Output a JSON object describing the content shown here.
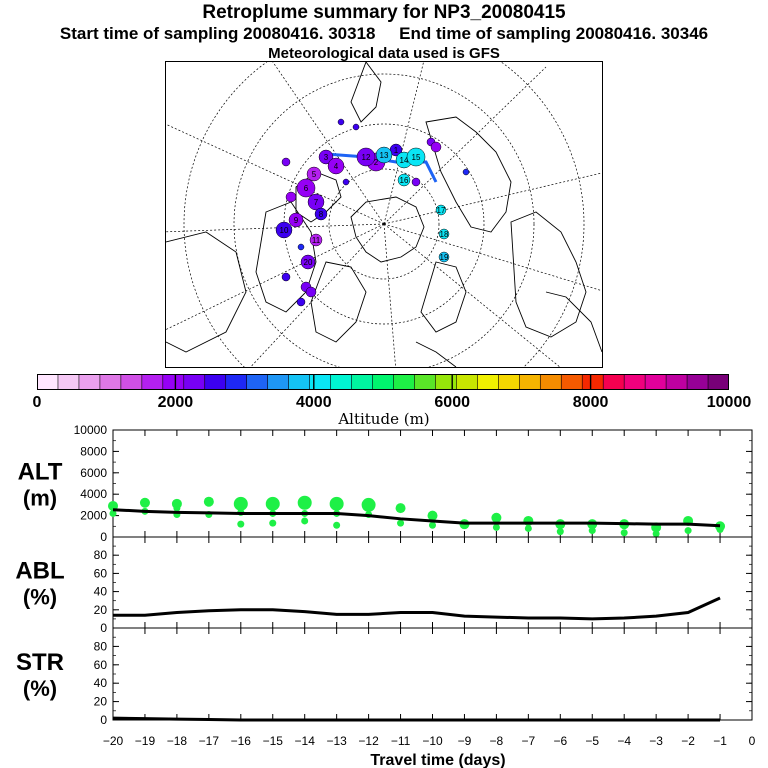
{
  "header": {
    "title": "Retroplume summary for NP3_20080415",
    "start_label": "Start time of sampling 20080416. 30318",
    "end_label": "End time of sampling 20080416. 30346",
    "meteo_label": "Meteorological data used is GFS"
  },
  "colorbar": {
    "title": "Altitude (m)",
    "ticks": [
      "0",
      "2000",
      "4000",
      "6000",
      "8000",
      "10000"
    ],
    "colors": [
      "#ffe6ff",
      "#f5c8f5",
      "#eaa0ee",
      "#de78e6",
      "#d050e6",
      "#b420f0",
      "#9600f5",
      "#7800f5",
      "#3c00f0",
      "#1e28f5",
      "#1e64f5",
      "#1e96f5",
      "#14c3f5",
      "#0ae6f5",
      "#00f5d2",
      "#00f5a0",
      "#00f56e",
      "#1ef046",
      "#5ae628",
      "#96e60a",
      "#c8e600",
      "#f0f000",
      "#f5d700",
      "#f5b400",
      "#f58c00",
      "#f55a00",
      "#f52800",
      "#f50050",
      "#f0007d",
      "#e1009b",
      "#be00a0",
      "#960096",
      "#780078"
    ]
  },
  "map_labels": {
    "labels": [
      "1",
      "2",
      "3",
      "4",
      "5",
      "6",
      "7",
      "8",
      "9",
      "10",
      "11",
      "12",
      "13",
      "14",
      "15",
      "16",
      "17",
      "18",
      "19",
      "20"
    ]
  },
  "chart_data": [
    {
      "type": "line",
      "panel": "ALT",
      "ylabel": "ALT\n(m)",
      "ylabel_line1": "ALT",
      "ylabel_line2": "(m)",
      "ylim": [
        0,
        10000
      ],
      "yticks": [
        "0",
        "2000",
        "4000",
        "6000",
        "8000",
        "10000"
      ],
      "x": [
        -20,
        -19,
        -18,
        -17,
        -16,
        -15,
        -14,
        -13,
        -12,
        -11,
        -10,
        -9,
        -8,
        -7,
        -6,
        -5,
        -4,
        -3,
        -2,
        -1
      ],
      "series": [
        {
          "name": "median altitude",
          "values": [
            2550,
            2400,
            2300,
            2250,
            2200,
            2200,
            2200,
            2200,
            2000,
            1700,
            1500,
            1300,
            1300,
            1300,
            1300,
            1300,
            1250,
            1200,
            1200,
            1050
          ]
        }
      ],
      "clusters": {
        "color": "#1ef046",
        "values": [
          [
            2900,
            2200
          ],
          [
            3200,
            2400
          ],
          [
            3100,
            2700,
            2100
          ],
          [
            3300,
            2100
          ],
          [
            3100,
            2300,
            1200
          ],
          [
            3100,
            2200,
            1300
          ],
          [
            3200,
            2200,
            1500
          ],
          [
            3100,
            2200,
            1100
          ],
          [
            3000,
            2100
          ],
          [
            2700,
            1300
          ],
          [
            2000,
            1100
          ],
          [
            1200
          ],
          [
            1800,
            900
          ],
          [
            1500,
            800
          ],
          [
            1200,
            500
          ],
          [
            1200,
            600
          ],
          [
            1200,
            400
          ],
          [
            900,
            300
          ],
          [
            1500,
            600
          ],
          [
            1000,
            700
          ]
        ]
      }
    },
    {
      "type": "line",
      "panel": "ABL",
      "ylabel_line1": "ABL",
      "ylabel_line2": "(%)",
      "ylim": [
        0,
        100
      ],
      "yticks": [
        "0",
        "20",
        "40",
        "60",
        "80"
      ],
      "x": [
        -20,
        -19,
        -18,
        -17,
        -16,
        -15,
        -14,
        -13,
        -12,
        -11,
        -10,
        -9,
        -8,
        -7,
        -6,
        -5,
        -4,
        -3,
        -2,
        -1
      ],
      "series": [
        {
          "name": "ABL fraction",
          "values": [
            14,
            14,
            17,
            19,
            20,
            20,
            18,
            15,
            15,
            17,
            17,
            13,
            12,
            11,
            11,
            10,
            11,
            13,
            17,
            33
          ]
        }
      ]
    },
    {
      "type": "line",
      "panel": "STR",
      "ylabel_line1": "STR",
      "ylabel_line2": "(%)",
      "ylim": [
        0,
        100
      ],
      "yticks": [
        "0",
        "20",
        "40",
        "60",
        "80"
      ],
      "x": [
        -20,
        -19,
        -18,
        -17,
        -16,
        -15,
        -14,
        -13,
        -12,
        -11,
        -10,
        -9,
        -8,
        -7,
        -6,
        -5,
        -4,
        -3,
        -2,
        -1
      ],
      "series": [
        {
          "name": "STR fraction",
          "values": [
            2,
            1.5,
            1,
            0.5,
            0,
            0,
            0,
            0,
            0,
            0,
            0,
            0,
            0,
            0,
            0,
            0,
            0,
            0,
            0,
            0
          ]
        }
      ]
    }
  ],
  "xaxis": {
    "label": "Travel time (days)",
    "ticks": [
      "−20",
      "−19",
      "−18",
      "−17",
      "−16",
      "−15",
      "−14",
      "−13",
      "−12",
      "−11",
      "−10",
      "−9",
      "−8",
      "−7",
      "−6",
      "−5",
      "−4",
      "−3",
      "−2",
      "−1",
      "0"
    ]
  }
}
